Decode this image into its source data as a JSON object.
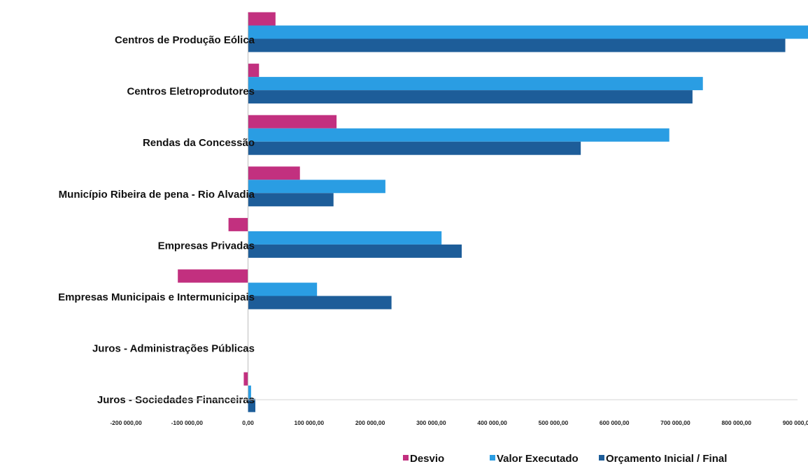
{
  "chart_data": {
    "type": "bar",
    "orientation": "horizontal",
    "categories": [
      "Centros de Produção Eólica",
      "Centros Eletroprodutores",
      "Rendas da Concessão",
      "Município Ribeira de pena - Rio Alvadia",
      "Empresas Privadas",
      "Empresas Municipais e Intermunicipais",
      "Juros - Administrações Públicas",
      "Juros - Sociedades Financeiras"
    ],
    "series": [
      {
        "name": "Desvio",
        "color": "#c2307f",
        "values": [
          45000,
          18000,
          145000,
          85000,
          -32000,
          -115000,
          0,
          -7000
        ]
      },
      {
        "name": "Valor  Executado",
        "color": "#2a9de3",
        "values": [
          925000,
          745000,
          690000,
          225000,
          317000,
          113000,
          0,
          5000
        ]
      },
      {
        "name": "Orçamento  Inicial / Final",
        "color": "#1d5d99",
        "values": [
          880000,
          728000,
          545000,
          140000,
          350000,
          235000,
          0,
          12000
        ]
      }
    ],
    "xlim": [
      -200000,
      900000
    ],
    "x_ticks": [
      -200000,
      -100000,
      0,
      100000,
      200000,
      300000,
      400000,
      500000,
      600000,
      700000,
      800000,
      900000
    ],
    "x_tick_labels": [
      "-200 000,00",
      "-100 000,00",
      "0,00",
      "100 000,00",
      "200 000,00",
      "300 000,00",
      "400 000,00",
      "500 000,00",
      "600 000,00",
      "700 000,00",
      "800 000,00",
      "900 000,00"
    ],
    "title": "",
    "xlabel": "",
    "ylabel": "",
    "grid": false,
    "legend_position": "bottom-right"
  }
}
